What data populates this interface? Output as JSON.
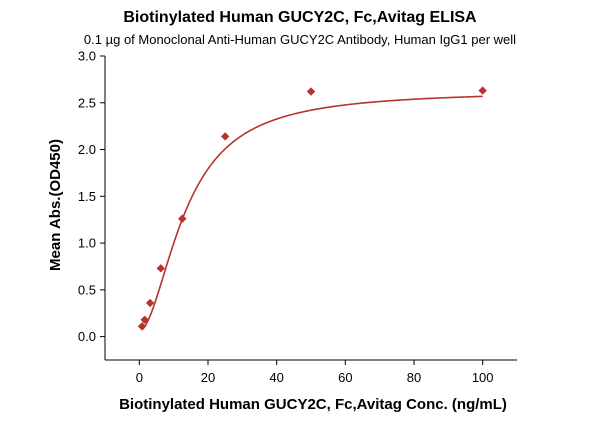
{
  "chart_data": {
    "type": "scatter",
    "title": "Biotinylated Human GUCY2C, Fc,Avitag ELISA",
    "subtitle": "0.1 µg of Monoclonal Anti-Human GUCY2C Antibody, Human IgG1 per well",
    "xlabel": "Biotinylated Human GUCY2C, Fc,Avitag Conc. (ng/mL)",
    "ylabel": "Mean Abs.(OD450)",
    "xlim": [
      -10,
      110
    ],
    "ylim": [
      -0.25,
      3.0
    ],
    "x_ticks": [
      0,
      20,
      40,
      60,
      80,
      100
    ],
    "y_ticks": [
      0.0,
      0.5,
      1.0,
      1.5,
      2.0,
      2.5,
      3.0
    ],
    "x_tick_labels": [
      "0",
      "20",
      "40",
      "60",
      "80",
      "100"
    ],
    "y_tick_labels": [
      "0.0",
      "0.5",
      "1.0",
      "1.5",
      "2.0",
      "2.5",
      "3.0"
    ],
    "grid": false,
    "color": "#b5352c",
    "series": [
      {
        "marker": "diamond",
        "x": [
          0.78,
          1.56,
          3.13,
          6.25,
          12.5,
          25,
          50,
          100
        ],
        "y": [
          0.11,
          0.18,
          0.36,
          0.73,
          1.26,
          2.14,
          2.62,
          2.63
        ]
      }
    ],
    "fit_curve": {
      "type": "4PL",
      "bottom": 0.06,
      "top": 2.63,
      "ec50": 13.5,
      "hill": 1.85
    }
  }
}
